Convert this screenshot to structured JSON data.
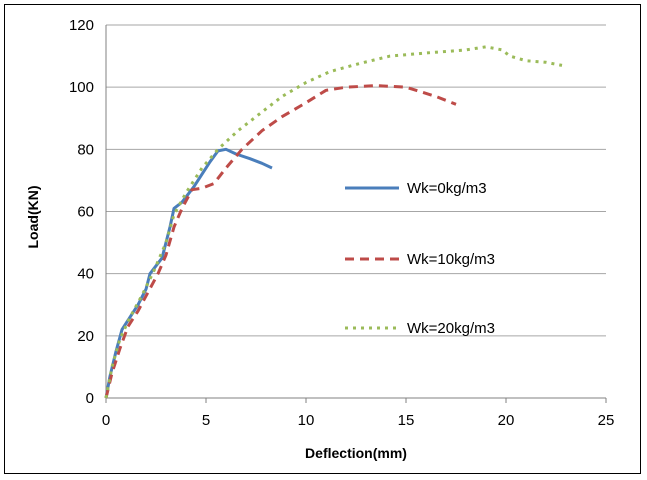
{
  "chart_data": {
    "type": "line",
    "title": "",
    "xlabel": "Deflection(mm)",
    "ylabel": "Load(KN)",
    "xlim": [
      0,
      25
    ],
    "ylim": [
      0,
      120
    ],
    "x_ticks": [
      "0",
      "5",
      "10",
      "15",
      "20",
      "25"
    ],
    "y_ticks": [
      "0",
      "20",
      "40",
      "60",
      "80",
      "100",
      "120"
    ],
    "grid": "horizontal",
    "legend_position": "inside-right",
    "series": [
      {
        "name": "Wk=0kg/m3",
        "color": "#4a7ebb",
        "style": "solid",
        "points": [
          [
            0,
            0
          ],
          [
            0.2,
            7
          ],
          [
            0.5,
            15
          ],
          [
            0.8,
            22
          ],
          [
            1.2,
            26
          ],
          [
            1.6,
            30
          ],
          [
            2.0,
            35
          ],
          [
            2.2,
            40
          ],
          [
            2.8,
            45
          ],
          [
            3.2,
            55
          ],
          [
            3.4,
            61
          ],
          [
            3.8,
            63
          ],
          [
            4.4,
            68
          ],
          [
            4.8,
            72
          ],
          [
            5.2,
            76
          ],
          [
            5.6,
            79.5
          ],
          [
            6.0,
            80
          ],
          [
            6.5,
            78.5
          ],
          [
            7.2,
            77
          ],
          [
            7.8,
            75.5
          ],
          [
            8.3,
            74
          ]
        ]
      },
      {
        "name": "Wk=10kg/m3",
        "color": "#be4b48",
        "style": "dashed",
        "points": [
          [
            0,
            0
          ],
          [
            0.3,
            8
          ],
          [
            0.7,
            16
          ],
          [
            1.1,
            23
          ],
          [
            1.6,
            28
          ],
          [
            2.1,
            34
          ],
          [
            2.6,
            40
          ],
          [
            3.0,
            46
          ],
          [
            3.4,
            55
          ],
          [
            3.8,
            61
          ],
          [
            4.3,
            67
          ],
          [
            4.8,
            67.5
          ],
          [
            5.4,
            69
          ],
          [
            6.0,
            74
          ],
          [
            6.8,
            80
          ],
          [
            7.8,
            86
          ],
          [
            8.8,
            90.5
          ],
          [
            10.0,
            95
          ],
          [
            11.0,
            99
          ],
          [
            12.0,
            100
          ],
          [
            13.5,
            100.5
          ],
          [
            15.0,
            100
          ],
          [
            16.5,
            97
          ],
          [
            17.5,
            94.5
          ]
        ]
      },
      {
        "name": "Wk=20kg/m3",
        "color": "#9bbb59",
        "style": "dotted",
        "points": [
          [
            0,
            0
          ],
          [
            0.3,
            10
          ],
          [
            0.7,
            19
          ],
          [
            1.2,
            26
          ],
          [
            1.8,
            33
          ],
          [
            2.4,
            41
          ],
          [
            3.0,
            50
          ],
          [
            3.4,
            59
          ],
          [
            4.0,
            66
          ],
          [
            4.8,
            74
          ],
          [
            5.6,
            80
          ],
          [
            6.6,
            86
          ],
          [
            7.6,
            91
          ],
          [
            8.8,
            97
          ],
          [
            10.0,
            101.5
          ],
          [
            11.2,
            105
          ],
          [
            12.6,
            107.5
          ],
          [
            14.2,
            110
          ],
          [
            16.0,
            111
          ],
          [
            18.0,
            112
          ],
          [
            19.0,
            113
          ],
          [
            19.8,
            112
          ],
          [
            20.2,
            110
          ],
          [
            21.0,
            108.5
          ],
          [
            22.0,
            108
          ],
          [
            22.8,
            107
          ]
        ]
      }
    ]
  }
}
